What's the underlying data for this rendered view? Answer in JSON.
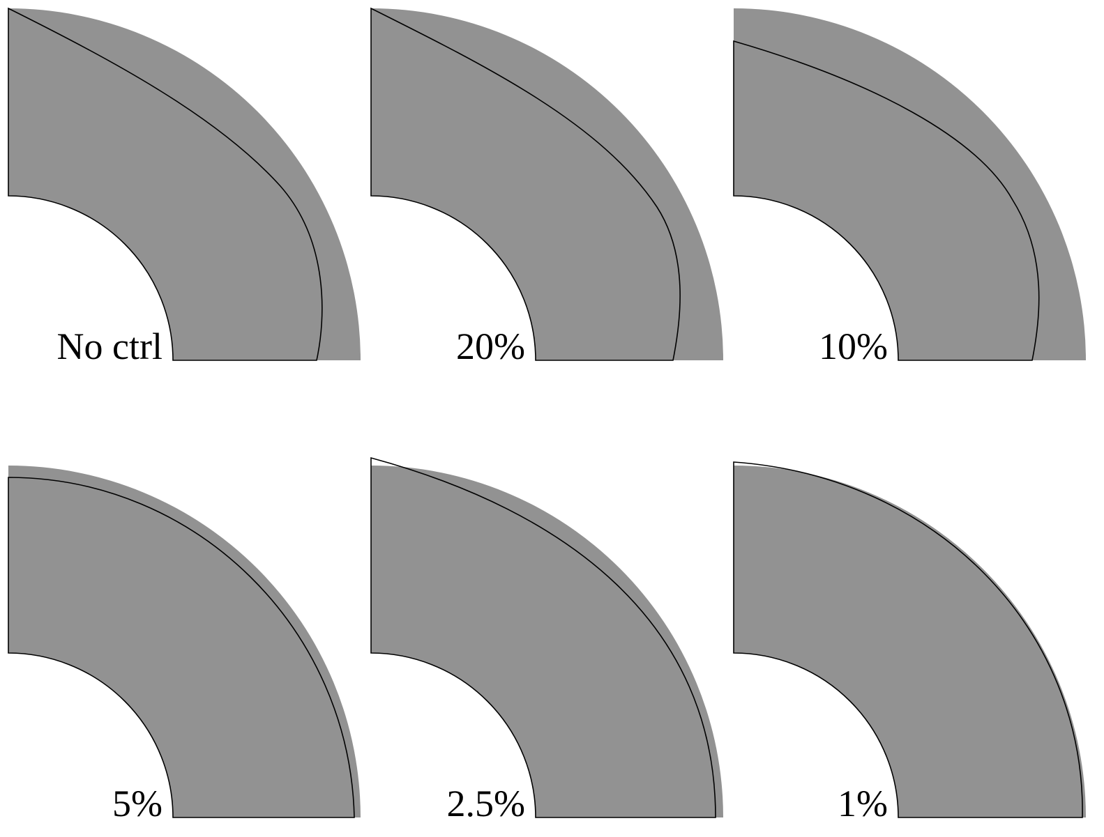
{
  "panels": [
    {
      "label": "No ctrl"
    },
    {
      "label": "20%"
    },
    {
      "label": "10%"
    },
    {
      "label": "5%"
    },
    {
      "label": "2.5%"
    },
    {
      "label": "1%"
    }
  ]
}
